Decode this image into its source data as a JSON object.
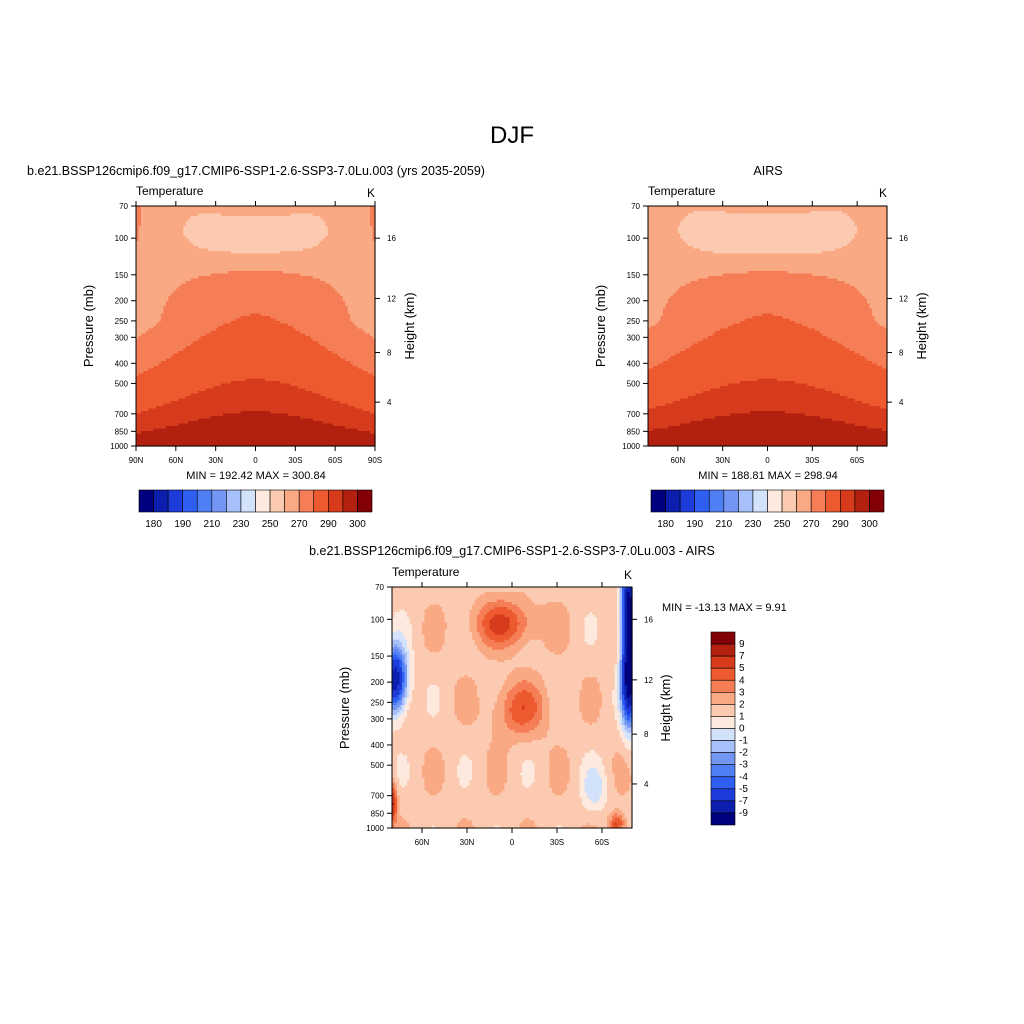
{
  "page_title": "DJF",
  "palette": [
    "#00007f",
    "#0b1eae",
    "#1c3bd8",
    "#2f5ff0",
    "#4f7ff4",
    "#7396f5",
    "#a7c0f9",
    "#d3e2fb",
    "#fde9de",
    "#fccab0",
    "#f9a983",
    "#f57e56",
    "#ed5a2f",
    "#d63b1c",
    "#b22010",
    "#840007"
  ],
  "chart_data": [
    {
      "id": "model",
      "type": "heatmap",
      "title": "b.e21.BSSP126cmip6.f09_g17.CMIP6-SSP1-2.6-SSP3-7.0Lu.003 (yrs 2035-2059)",
      "left_label": "Temperature",
      "right_label": "K",
      "ylabel": "Pressure (mb)",
      "ylabel_right": "Height (km)",
      "x_ticks": [
        "90N",
        "60N",
        "30N",
        "0",
        "30S",
        "60S",
        "90S"
      ],
      "y_ticks": [
        "70",
        "100",
        "150",
        "200",
        "250",
        "300",
        "400",
        "500",
        "700",
        "850",
        "1000"
      ],
      "height_ticks": [
        "16",
        "12",
        "8",
        "4"
      ],
      "xlim": [
        -90,
        90
      ],
      "ylim": [
        1000,
        70
      ],
      "stats": "MIN = 192.42  MAX = 300.84",
      "colorbar_labels": [
        "180",
        "190",
        "210",
        "230",
        "250",
        "270",
        "290",
        "300"
      ],
      "min": 192.42,
      "max": 300.84
    },
    {
      "id": "airs",
      "type": "heatmap",
      "title": "AIRS",
      "left_label": "Temperature",
      "right_label": "K",
      "ylabel": "Pressure (mb)",
      "ylabel_right": "Height (km)",
      "x_ticks": [
        "60N",
        "30N",
        "0",
        "30S",
        "60S"
      ],
      "y_ticks": [
        "70",
        "100",
        "150",
        "200",
        "250",
        "300",
        "400",
        "500",
        "700",
        "850",
        "1000"
      ],
      "height_ticks": [
        "16",
        "12",
        "8",
        "4"
      ],
      "xlim": [
        -80,
        80
      ],
      "ylim": [
        1000,
        70
      ],
      "stats": "MIN = 188.81  MAX = 298.94",
      "colorbar_labels": [
        "180",
        "190",
        "210",
        "230",
        "250",
        "270",
        "290",
        "300"
      ],
      "min": 188.81,
      "max": 298.94
    },
    {
      "id": "diff",
      "type": "heatmap",
      "title": "b.e21.BSSP126cmip6.f09_g17.CMIP6-SSP1-2.6-SSP3-7.0Lu.003 - AIRS",
      "left_label": "Temperature",
      "right_label": "K",
      "ylabel": "Pressure (mb)",
      "ylabel_right": "Height (km)",
      "x_ticks": [
        "60N",
        "30N",
        "0",
        "30S",
        "60S"
      ],
      "y_ticks": [
        "70",
        "100",
        "150",
        "200",
        "250",
        "300",
        "400",
        "500",
        "700",
        "850",
        "1000"
      ],
      "height_ticks": [
        "16",
        "12",
        "8",
        "4"
      ],
      "xlim": [
        -80,
        80
      ],
      "ylim": [
        1000,
        70
      ],
      "stats": "MIN = -13.13  MAX =   9.91",
      "colorbar_labels": [
        "9",
        "7",
        "5",
        "4",
        "3",
        "2",
        "1",
        "0",
        "-1",
        "-2",
        "-3",
        "-4",
        "-5",
        "-7",
        "-9"
      ],
      "min": -13.13,
      "max": 9.91
    }
  ]
}
